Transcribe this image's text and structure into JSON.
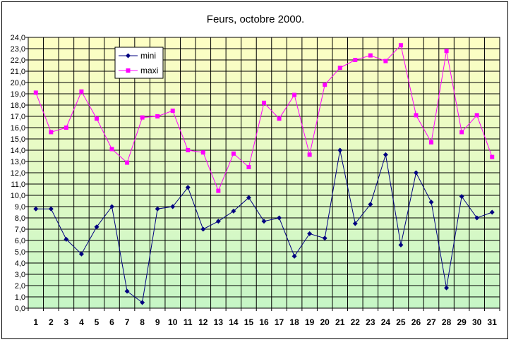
{
  "chart_data": {
    "type": "line",
    "title": "Feurs, octobre 2000.",
    "x": [
      1,
      2,
      3,
      4,
      5,
      6,
      7,
      8,
      9,
      10,
      11,
      12,
      13,
      14,
      15,
      16,
      17,
      18,
      19,
      20,
      21,
      22,
      23,
      24,
      25,
      26,
      27,
      28,
      29,
      30,
      31
    ],
    "x_tick_labels": [
      "1",
      "2",
      "3",
      "4",
      "5",
      "6",
      "7",
      "8",
      "9",
      "10",
      "11",
      "12",
      "13",
      "14",
      "15",
      "16",
      "17",
      "18",
      "19",
      "20",
      "21",
      "22",
      "23",
      "24",
      "25",
      "26",
      "27",
      "28",
      "29",
      "30",
      "31"
    ],
    "y_tick_labels": [
      "0,0",
      "1,0",
      "2,0",
      "3,0",
      "4,0",
      "5,0",
      "6,0",
      "7,0",
      "8,0",
      "9,0",
      "10,0",
      "11,0",
      "12,0",
      "13,0",
      "14,0",
      "15,0",
      "16,0",
      "17,0",
      "18,0",
      "19,0",
      "20,0",
      "21,0",
      "22,0",
      "23,0",
      "24,0"
    ],
    "ylim": [
      0,
      24
    ],
    "ystep": 1,
    "grid": true,
    "legend_position": "top-left",
    "background_gradient": {
      "top": "#fefec4",
      "bottom": "#c6f6c6"
    },
    "series": [
      {
        "name": "mini",
        "color": "#000080",
        "marker": "diamond",
        "values": [
          8.8,
          8.8,
          6.1,
          4.8,
          7.2,
          9.0,
          1.5,
          0.5,
          8.8,
          9.0,
          10.7,
          7.0,
          7.7,
          8.6,
          9.8,
          7.7,
          8.0,
          4.6,
          6.6,
          6.2,
          14.0,
          7.5,
          9.2,
          13.6,
          5.6,
          12.0,
          9.4,
          1.8,
          9.9,
          8.0,
          8.5
        ]
      },
      {
        "name": "maxi",
        "color": "#ff00ff",
        "marker": "square",
        "values": [
          19.1,
          15.6,
          16.0,
          19.2,
          16.8,
          14.1,
          12.9,
          16.9,
          17.0,
          17.5,
          14.0,
          13.8,
          10.4,
          13.7,
          12.5,
          18.2,
          16.8,
          18.9,
          13.6,
          19.8,
          21.3,
          22.0,
          22.4,
          21.9,
          23.3,
          17.1,
          14.7,
          22.8,
          15.6,
          17.1,
          13.4
        ]
      }
    ]
  }
}
